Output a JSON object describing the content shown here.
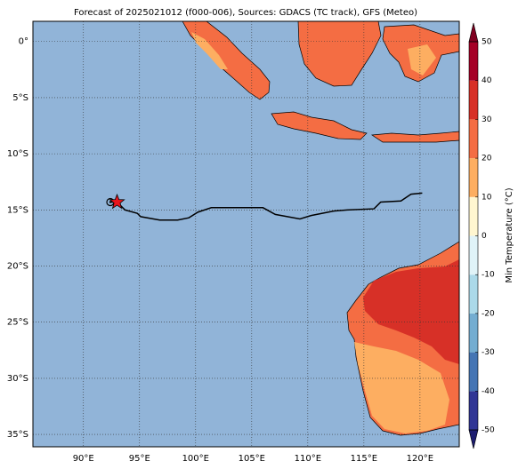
{
  "map": {
    "title": "Forecast of 2025021012 (f000-006), Sources: GDACS (TC track), GFS (Meteo)",
    "xlim": [
      85.5,
      123.5
    ],
    "ylim": [
      -36.1,
      1.8
    ],
    "xticks": [
      {
        "value": 90,
        "label": "90°E"
      },
      {
        "value": 95,
        "label": "95°E"
      },
      {
        "value": 100,
        "label": "100°E"
      },
      {
        "value": 105,
        "label": "105°E"
      },
      {
        "value": 110,
        "label": "110°E"
      },
      {
        "value": 115,
        "label": "115°E"
      },
      {
        "value": 120,
        "label": "120°E"
      }
    ],
    "yticks": [
      {
        "value": 0,
        "label": "0°"
      },
      {
        "value": -5,
        "label": "5°S"
      },
      {
        "value": -10,
        "label": "10°S"
      },
      {
        "value": -15,
        "label": "15°S"
      },
      {
        "value": -20,
        "label": "20°S"
      },
      {
        "value": -25,
        "label": "25°S"
      },
      {
        "value": -30,
        "label": "30°S"
      },
      {
        "value": -35,
        "label": "35°S"
      }
    ],
    "grid": true,
    "ocean_color": "#91b4d8",
    "track": {
      "color": "#000000",
      "lon": [
        92.4,
        93.0,
        93.7,
        94.8,
        95.1,
        96.8,
        98.4,
        99.4,
        100.2,
        101.4,
        106.0,
        107.1,
        109.3,
        110.3,
        112.3,
        113.5,
        115.9,
        116.5,
        118.3,
        119.2,
        120.2
      ],
      "lat": [
        -14.3,
        -14.3,
        -15.0,
        -15.3,
        -15.6,
        -15.9,
        -15.9,
        -15.7,
        -15.2,
        -14.8,
        -14.8,
        -15.4,
        -15.8,
        -15.5,
        -15.1,
        -15.0,
        -14.9,
        -14.3,
        -14.2,
        -13.6,
        -13.5
      ]
    },
    "start_point": {
      "lon": 92.4,
      "lat": -14.3
    },
    "current_position": {
      "lon": 93.0,
      "lat": -14.3,
      "color": "#e8141c"
    }
  },
  "colorbar": {
    "label": "Min Temperature (°C)",
    "clim": [
      -50,
      50
    ],
    "ticks": [
      -50,
      -40,
      -30,
      -20,
      -10,
      0,
      10,
      20,
      30,
      40,
      50
    ],
    "colors": [
      "#313695",
      "#4575b4",
      "#74add1",
      "#abd9e9",
      "#e0f3f8",
      "#fff6d0",
      "#fdae61",
      "#f46d43",
      "#d73027",
      "#a50026"
    ],
    "under_color": "#1d1d70",
    "over_color": "#800020"
  }
}
